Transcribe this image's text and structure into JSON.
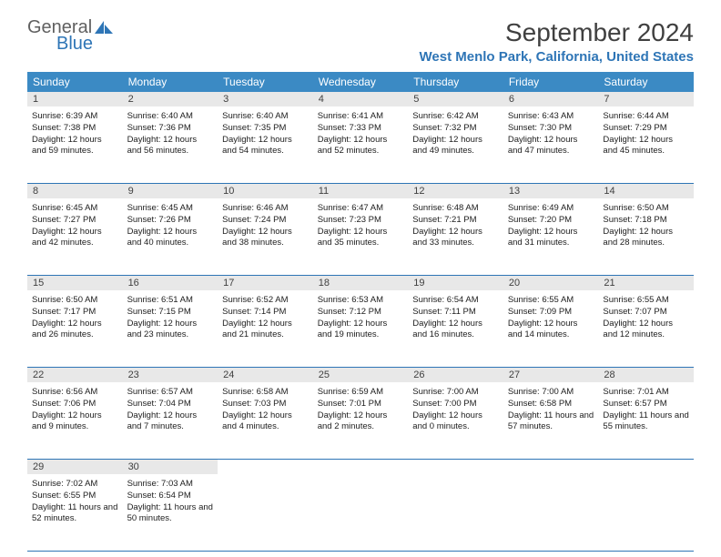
{
  "logo": {
    "text1": "General",
    "text2": "Blue"
  },
  "title": "September 2024",
  "location": "West Menlo Park, California, United States",
  "weekdays": [
    "Sunday",
    "Monday",
    "Tuesday",
    "Wednesday",
    "Thursday",
    "Friday",
    "Saturday"
  ],
  "colors": {
    "header_bg": "#3B8AC4",
    "accent": "#2E75B6",
    "daynum_bg": "#E8E8E8",
    "text": "#202020"
  },
  "weeks": [
    [
      {
        "n": "1",
        "sr": "6:39 AM",
        "ss": "7:38 PM",
        "dl": "12 hours and 59 minutes."
      },
      {
        "n": "2",
        "sr": "6:40 AM",
        "ss": "7:36 PM",
        "dl": "12 hours and 56 minutes."
      },
      {
        "n": "3",
        "sr": "6:40 AM",
        "ss": "7:35 PM",
        "dl": "12 hours and 54 minutes."
      },
      {
        "n": "4",
        "sr": "6:41 AM",
        "ss": "7:33 PM",
        "dl": "12 hours and 52 minutes."
      },
      {
        "n": "5",
        "sr": "6:42 AM",
        "ss": "7:32 PM",
        "dl": "12 hours and 49 minutes."
      },
      {
        "n": "6",
        "sr": "6:43 AM",
        "ss": "7:30 PM",
        "dl": "12 hours and 47 minutes."
      },
      {
        "n": "7",
        "sr": "6:44 AM",
        "ss": "7:29 PM",
        "dl": "12 hours and 45 minutes."
      }
    ],
    [
      {
        "n": "8",
        "sr": "6:45 AM",
        "ss": "7:27 PM",
        "dl": "12 hours and 42 minutes."
      },
      {
        "n": "9",
        "sr": "6:45 AM",
        "ss": "7:26 PM",
        "dl": "12 hours and 40 minutes."
      },
      {
        "n": "10",
        "sr": "6:46 AM",
        "ss": "7:24 PM",
        "dl": "12 hours and 38 minutes."
      },
      {
        "n": "11",
        "sr": "6:47 AM",
        "ss": "7:23 PM",
        "dl": "12 hours and 35 minutes."
      },
      {
        "n": "12",
        "sr": "6:48 AM",
        "ss": "7:21 PM",
        "dl": "12 hours and 33 minutes."
      },
      {
        "n": "13",
        "sr": "6:49 AM",
        "ss": "7:20 PM",
        "dl": "12 hours and 31 minutes."
      },
      {
        "n": "14",
        "sr": "6:50 AM",
        "ss": "7:18 PM",
        "dl": "12 hours and 28 minutes."
      }
    ],
    [
      {
        "n": "15",
        "sr": "6:50 AM",
        "ss": "7:17 PM",
        "dl": "12 hours and 26 minutes."
      },
      {
        "n": "16",
        "sr": "6:51 AM",
        "ss": "7:15 PM",
        "dl": "12 hours and 23 minutes."
      },
      {
        "n": "17",
        "sr": "6:52 AM",
        "ss": "7:14 PM",
        "dl": "12 hours and 21 minutes."
      },
      {
        "n": "18",
        "sr": "6:53 AM",
        "ss": "7:12 PM",
        "dl": "12 hours and 19 minutes."
      },
      {
        "n": "19",
        "sr": "6:54 AM",
        "ss": "7:11 PM",
        "dl": "12 hours and 16 minutes."
      },
      {
        "n": "20",
        "sr": "6:55 AM",
        "ss": "7:09 PM",
        "dl": "12 hours and 14 minutes."
      },
      {
        "n": "21",
        "sr": "6:55 AM",
        "ss": "7:07 PM",
        "dl": "12 hours and 12 minutes."
      }
    ],
    [
      {
        "n": "22",
        "sr": "6:56 AM",
        "ss": "7:06 PM",
        "dl": "12 hours and 9 minutes."
      },
      {
        "n": "23",
        "sr": "6:57 AM",
        "ss": "7:04 PM",
        "dl": "12 hours and 7 minutes."
      },
      {
        "n": "24",
        "sr": "6:58 AM",
        "ss": "7:03 PM",
        "dl": "12 hours and 4 minutes."
      },
      {
        "n": "25",
        "sr": "6:59 AM",
        "ss": "7:01 PM",
        "dl": "12 hours and 2 minutes."
      },
      {
        "n": "26",
        "sr": "7:00 AM",
        "ss": "7:00 PM",
        "dl": "12 hours and 0 minutes."
      },
      {
        "n": "27",
        "sr": "7:00 AM",
        "ss": "6:58 PM",
        "dl": "11 hours and 57 minutes."
      },
      {
        "n": "28",
        "sr": "7:01 AM",
        "ss": "6:57 PM",
        "dl": "11 hours and 55 minutes."
      }
    ],
    [
      {
        "n": "29",
        "sr": "7:02 AM",
        "ss": "6:55 PM",
        "dl": "11 hours and 52 minutes."
      },
      {
        "n": "30",
        "sr": "7:03 AM",
        "ss": "6:54 PM",
        "dl": "11 hours and 50 minutes."
      },
      null,
      null,
      null,
      null,
      null
    ]
  ]
}
